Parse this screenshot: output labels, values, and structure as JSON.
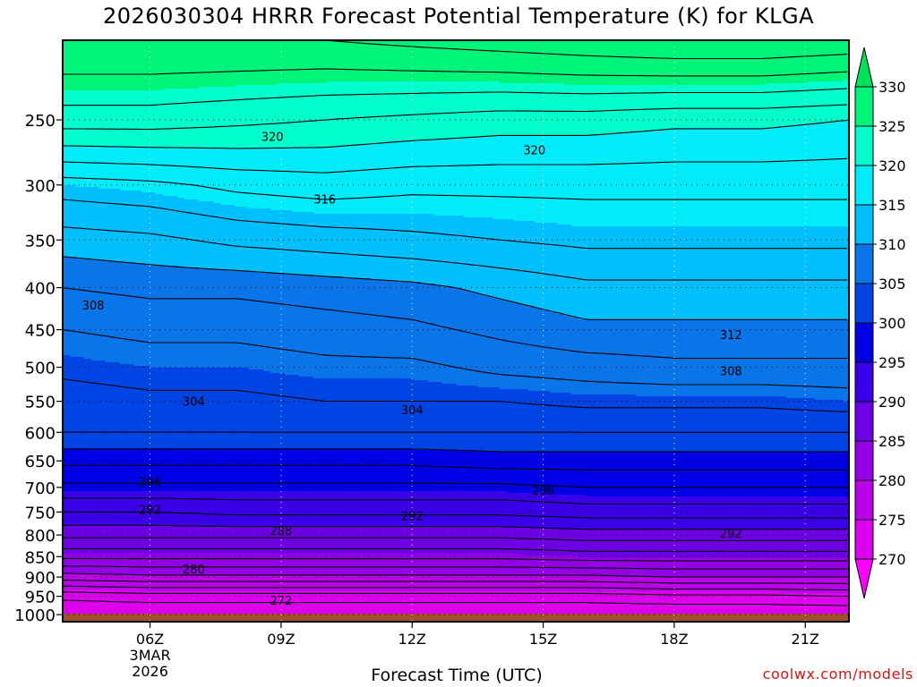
{
  "chart_data": {
    "type": "heatmap",
    "title": "2026030304 HRRR Forecast Potential Temperature (K) for KLGA",
    "xlabel": "Forecast Time (UTC)",
    "ylabel": "",
    "x_ticks": [
      "06Z",
      "09Z",
      "12Z",
      "15Z",
      "18Z",
      "21Z"
    ],
    "x_hours": [
      6,
      9,
      12,
      15,
      18,
      21
    ],
    "x_range_hours": [
      4,
      22
    ],
    "x_first_tick_date": [
      "3MAR",
      "2026"
    ],
    "y_ticks": [
      250,
      300,
      350,
      400,
      450,
      500,
      550,
      600,
      650,
      700,
      750,
      800,
      850,
      900,
      950,
      1000
    ],
    "y_range": [
      1020,
      200
    ],
    "y_axis": "pressure (hPa), log scale, decreasing upward",
    "grid": true,
    "colorbar": {
      "levels": [
        270,
        275,
        280,
        285,
        290,
        295,
        300,
        305,
        310,
        315,
        320,
        325,
        330
      ],
      "colors": [
        "#ff00ff",
        "#dd00ef",
        "#bb00ea",
        "#9300e6",
        "#6e00e6",
        "#3a00e8",
        "#0000e6",
        "#0044e4",
        "#0a75e8",
        "#00bfff",
        "#00ecfa",
        "#00ffcc",
        "#00f47a",
        "#00e05a"
      ],
      "placement": "right",
      "extend": "both"
    },
    "contour_interval": 2,
    "contour_labels": [
      {
        "value": 320,
        "x_hour": 8.8,
        "p": 262
      },
      {
        "value": 320,
        "x_hour": 14.8,
        "p": 272
      },
      {
        "value": 316,
        "x_hour": 10.0,
        "p": 312
      },
      {
        "value": 308,
        "x_hour": 4.7,
        "p": 420
      },
      {
        "value": 312,
        "x_hour": 19.3,
        "p": 456
      },
      {
        "value": 308,
        "x_hour": 19.3,
        "p": 505
      },
      {
        "value": 304,
        "x_hour": 7.0,
        "p": 550
      },
      {
        "value": 304,
        "x_hour": 12.0,
        "p": 563
      },
      {
        "value": 296,
        "x_hour": 6.0,
        "p": 688
      },
      {
        "value": 296,
        "x_hour": 15.0,
        "p": 706
      },
      {
        "value": 292,
        "x_hour": 6.0,
        "p": 745
      },
      {
        "value": 292,
        "x_hour": 12.0,
        "p": 758
      },
      {
        "value": 288,
        "x_hour": 9.0,
        "p": 790
      },
      {
        "value": 292,
        "x_hour": 19.3,
        "p": 796
      },
      {
        "value": 280,
        "x_hour": 7.0,
        "p": 880
      },
      {
        "value": 272,
        "x_hour": 9.0,
        "p": 960
      }
    ],
    "theta_profile_by_hour": {
      "hours": [
        4,
        6,
        8,
        10,
        12,
        14,
        16,
        18,
        20,
        22
      ],
      "levels_hpa": [
        200,
        250,
        300,
        350,
        400,
        450,
        500,
        550,
        600,
        650,
        700,
        750,
        800,
        850,
        900,
        950,
        1000
      ],
      "values": [
        [
          328,
          323,
          315,
          311,
          308,
          306,
          304.5,
          303,
          302,
          298.5,
          295.5,
          292,
          288.5,
          284.5,
          279,
          272.5,
          270
        ],
        [
          328,
          323,
          315.5,
          311.5,
          308.5,
          306.5,
          305,
          303.5,
          302,
          298.5,
          295.5,
          292,
          288.5,
          284.5,
          279.5,
          273,
          270
        ],
        [
          328,
          322.5,
          316.5,
          312.5,
          308.5,
          306.5,
          305,
          303.5,
          302,
          298.5,
          295.5,
          292.5,
          288.5,
          284.5,
          279.5,
          273,
          270
        ],
        [
          328,
          322,
          317,
          313,
          309,
          307,
          305.5,
          304,
          302,
          298.5,
          295.5,
          292.5,
          288.5,
          284.5,
          279.5,
          273,
          270
        ],
        [
          328.5,
          321.5,
          316.5,
          313.5,
          309.5,
          307.5,
          305.5,
          304,
          302,
          298.5,
          295.5,
          292.5,
          288.5,
          284.5,
          279.5,
          273,
          270
        ],
        [
          329,
          321,
          316.5,
          314,
          310.5,
          308.5,
          306.5,
          304,
          302,
          299,
          295.5,
          292.5,
          288.5,
          284.5,
          279.5,
          273,
          270
        ],
        [
          329.5,
          321,
          316.5,
          314.5,
          311.5,
          309.5,
          307,
          304.5,
          302,
          299,
          296,
          293,
          289,
          285,
          279.5,
          273,
          270
        ],
        [
          330,
          320.5,
          316.5,
          314.5,
          311.5,
          309.5,
          307.5,
          304.5,
          302,
          299,
          296,
          293,
          289,
          285,
          280,
          273.5,
          270
        ],
        [
          330,
          320.5,
          316.5,
          314.5,
          311.5,
          309.5,
          307.5,
          304.5,
          302,
          299,
          296,
          293,
          289,
          285,
          280,
          273.5,
          270
        ],
        [
          329.5,
          320,
          316.5,
          314.5,
          311.5,
          309.5,
          307.5,
          305,
          302,
          299,
          296,
          293,
          289,
          285,
          280,
          274,
          270
        ]
      ]
    },
    "surface_color": "#a0522d"
  },
  "credit": "coolwx.com/models"
}
